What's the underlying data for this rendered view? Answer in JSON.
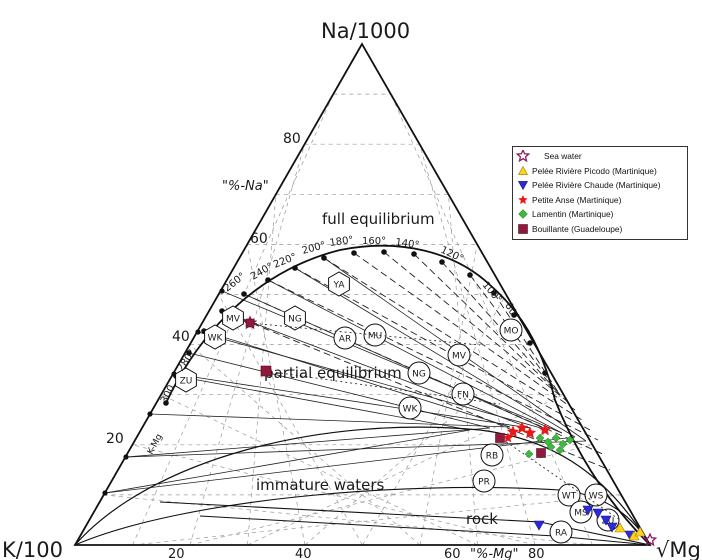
{
  "apex_labels": {
    "top": "Na/1000",
    "left": "K/100",
    "right": "√Mg"
  },
  "axis_labels": {
    "na_percent": "\"%-Na\"",
    "mg_percent": "\"%-Mg\""
  },
  "side_ticks": [
    "80",
    "60",
    "40",
    "20"
  ],
  "bottom_ticks": [
    "20",
    "40",
    "60",
    "80"
  ],
  "curve_labels": {
    "full": "full equilibrium",
    "partial": "partial equilibrium",
    "immature": "immature waters",
    "rock": "rock",
    "kmg": "K-Mg"
  },
  "full_eq_temperatures": [
    "260°",
    "240°",
    "220°",
    "200°",
    "180°",
    "160°",
    "140°",
    "120°",
    "100°",
    "80°"
  ],
  "left_temperatures": [
    "280°",
    "300"
  ],
  "sample_codes": [
    "YA",
    "NG",
    "AR",
    "MU",
    "MV",
    "NG",
    "FN",
    "WK",
    "MO",
    "WK",
    "ZU",
    "MV",
    "RB",
    "PR",
    "WT",
    "WS",
    "RA",
    "MS",
    "ZU"
  ],
  "legend": [
    {
      "label": "Sea water",
      "symbol": "star-outline",
      "color": "#8b1a5e"
    },
    {
      "label": "Pelée Rivière Picodo (Martinique)",
      "symbol": "triangle-up",
      "color": "#ffd21f"
    },
    {
      "label": "Pelée Rivière Chaude (Martinique)",
      "symbol": "triangle-down",
      "color": "#2d2ad8"
    },
    {
      "label": "Petite Anse (Martinique)",
      "symbol": "star-filled",
      "color": "#e81919"
    },
    {
      "label": "Lamentin (Martinique)",
      "symbol": "diamond",
      "color": "#3fb83f"
    },
    {
      "label": "Bouillante (Guadeloupe)",
      "symbol": "square",
      "color": "#8e1a3e"
    }
  ]
}
